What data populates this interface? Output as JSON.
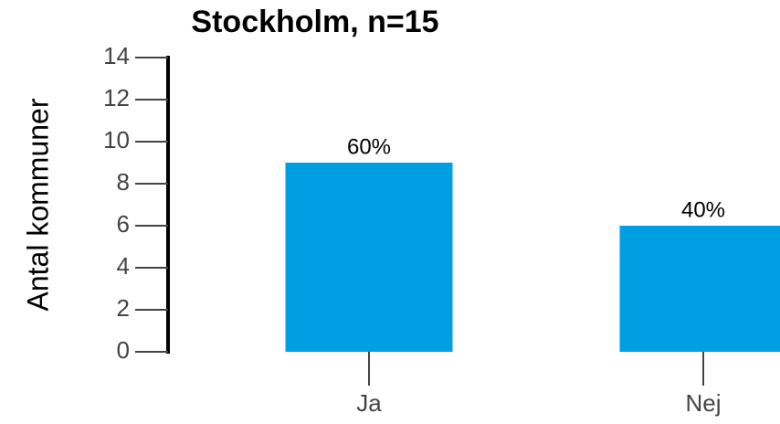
{
  "chart_data": {
    "type": "bar",
    "title": "Stockholm, n=15",
    "ylabel": "Antal kommuner",
    "categories": [
      "Ja",
      "Nej"
    ],
    "values": [
      9,
      6
    ],
    "value_labels": [
      "60%",
      "40%"
    ],
    "color": "#009fe3",
    "ylim": [
      0,
      14
    ],
    "yticks": [
      0,
      2,
      4,
      6,
      8,
      10,
      12,
      14
    ]
  }
}
